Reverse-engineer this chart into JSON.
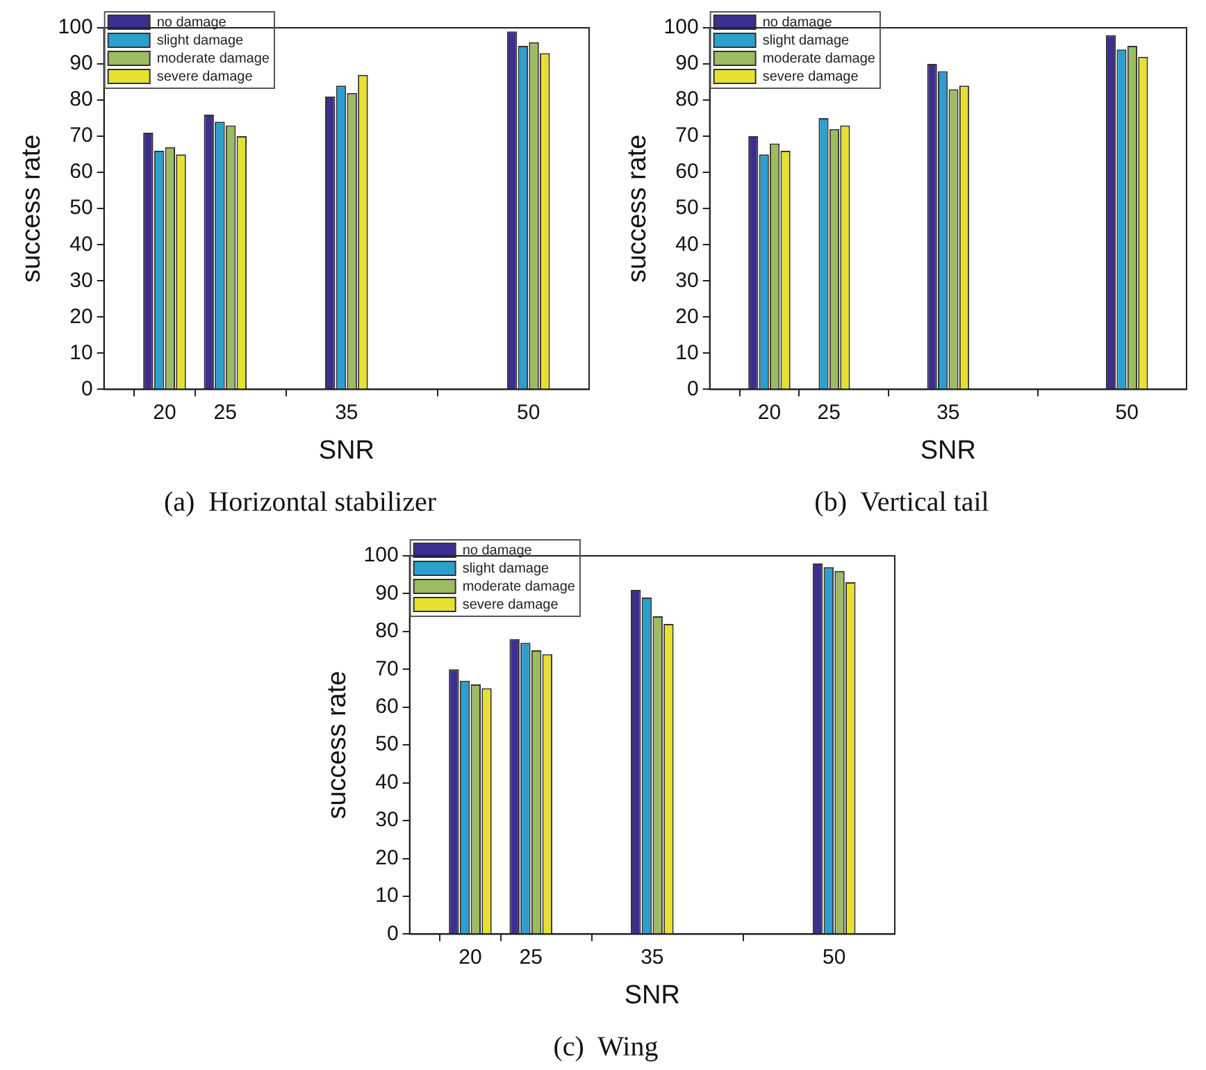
{
  "chart_data": [
    {
      "type": "bar",
      "title": "(a)  Horizontal stabilizer",
      "xlabel": "SNR",
      "ylabel": "success rate",
      "x": [
        20,
        25,
        35,
        50
      ],
      "xlim": [
        15,
        55
      ],
      "xticks": [
        20,
        25,
        35,
        50
      ],
      "ylim": [
        0,
        100
      ],
      "yticks": [
        0,
        10,
        20,
        30,
        40,
        50,
        60,
        70,
        80,
        90,
        100
      ],
      "grid": false,
      "legend": "top left",
      "series": [
        {
          "name": "no damage",
          "color": "#3b2f8f",
          "values": [
            71,
            76,
            81,
            99
          ]
        },
        {
          "name": "slight damage",
          "color": "#2b9fd0",
          "values": [
            66,
            74,
            84,
            95
          ]
        },
        {
          "name": "moderate damage",
          "color": "#9dbb61",
          "values": [
            67,
            73,
            82,
            96
          ]
        },
        {
          "name": "severe damage",
          "color": "#e8e030",
          "values": [
            65,
            70,
            87,
            93
          ]
        }
      ]
    },
    {
      "type": "bar",
      "title": "(b)  Vertical tail",
      "xlabel": "SNR",
      "ylabel": "success rate",
      "x": [
        20,
        25,
        35,
        50
      ],
      "xlim": [
        15,
        55
      ],
      "xticks": [
        20,
        25,
        35,
        50
      ],
      "ylim": [
        0,
        100
      ],
      "yticks": [
        0,
        10,
        20,
        30,
        40,
        50,
        60,
        70,
        80,
        90,
        100
      ],
      "grid": false,
      "legend": "top left",
      "series": [
        {
          "name": "no damage",
          "color": "#3b2f8f",
          "values": [
            70,
            null,
            90,
            98
          ]
        },
        {
          "name": "slight damage",
          "color": "#2b9fd0",
          "values": [
            65,
            75,
            88,
            94
          ]
        },
        {
          "name": "moderate damage",
          "color": "#9dbb61",
          "values": [
            68,
            72,
            83,
            95
          ]
        },
        {
          "name": "severe damage",
          "color": "#e8e030",
          "values": [
            66,
            73,
            84,
            92
          ]
        }
      ]
    },
    {
      "type": "bar",
      "title": "(c)  Wing",
      "xlabel": "SNR",
      "ylabel": "success rate",
      "x": [
        20,
        25,
        35,
        50
      ],
      "xlim": [
        15,
        55
      ],
      "xticks": [
        20,
        25,
        35,
        50
      ],
      "ylim": [
        0,
        100
      ],
      "yticks": [
        0,
        10,
        20,
        30,
        40,
        50,
        60,
        70,
        80,
        90,
        100
      ],
      "grid": false,
      "legend": "top left",
      "series": [
        {
          "name": "no damage",
          "color": "#3b2f8f",
          "values": [
            70,
            78,
            91,
            98
          ]
        },
        {
          "name": "slight damage",
          "color": "#2b9fd0",
          "values": [
            67,
            77,
            89,
            97
          ]
        },
        {
          "name": "moderate damage",
          "color": "#9dbb61",
          "values": [
            66,
            75,
            84,
            96
          ]
        },
        {
          "name": "severe damage",
          "color": "#e8e030",
          "values": [
            65,
            74,
            82,
            93
          ]
        }
      ]
    }
  ]
}
